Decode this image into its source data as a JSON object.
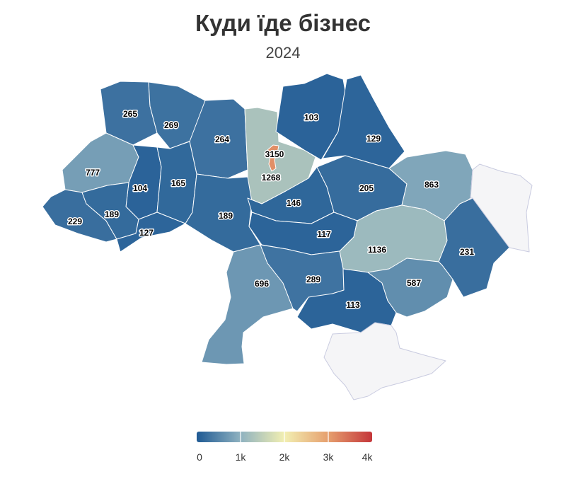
{
  "title": "Куди їде бізнес",
  "subtitle": "2024",
  "chart_data": {
    "type": "choropleth",
    "colorscale": [
      "#1f5a94",
      "#8fb2c0",
      "#f2efb2",
      "#e69f6e",
      "#c4363a"
    ],
    "color_range": [
      0,
      4000
    ],
    "legend_ticks": [
      "0",
      "1k",
      "2k",
      "3k",
      "4k"
    ],
    "regions": [
      {
        "id": "volyn",
        "value": 265,
        "label": "265"
      },
      {
        "id": "rivne",
        "value": 269,
        "label": "269"
      },
      {
        "id": "zhytomyr",
        "value": 264,
        "label": "264"
      },
      {
        "id": "kyiv-city",
        "value": 3150,
        "label": "3150"
      },
      {
        "id": "kyiv-oblast",
        "value": 1268,
        "label": "1268"
      },
      {
        "id": "chernihiv",
        "value": 103,
        "label": "103"
      },
      {
        "id": "sumy",
        "value": 129,
        "label": "129"
      },
      {
        "id": "lviv",
        "value": 777,
        "label": "777"
      },
      {
        "id": "ternopil",
        "value": 104,
        "label": "104"
      },
      {
        "id": "khmelnytskyi",
        "value": 165,
        "label": "165"
      },
      {
        "id": "vinnytsia",
        "value": 189,
        "label": "189"
      },
      {
        "id": "cherkasy",
        "value": 146,
        "label": "146"
      },
      {
        "id": "poltava",
        "value": 205,
        "label": "205"
      },
      {
        "id": "kharkiv",
        "value": 863,
        "label": "863"
      },
      {
        "id": "zakarpattia",
        "value": 229,
        "label": "229"
      },
      {
        "id": "ivano-frankivsk",
        "value": 189,
        "label": "189"
      },
      {
        "id": "chernivtsi",
        "value": 127,
        "label": "127"
      },
      {
        "id": "kirovohrad",
        "value": 117,
        "label": "117"
      },
      {
        "id": "dnipropetrovsk",
        "value": 1136,
        "label": "1136"
      },
      {
        "id": "donetsk",
        "value": 231,
        "label": "231"
      },
      {
        "id": "odesa",
        "value": 696,
        "label": "696"
      },
      {
        "id": "mykolaiv",
        "value": 289,
        "label": "289"
      },
      {
        "id": "kherson",
        "value": 113,
        "label": "113"
      },
      {
        "id": "zaporizhzhia",
        "value": 587,
        "label": "587"
      },
      {
        "id": "luhansk",
        "value": null,
        "label": ""
      },
      {
        "id": "crimea",
        "value": null,
        "label": ""
      }
    ]
  }
}
